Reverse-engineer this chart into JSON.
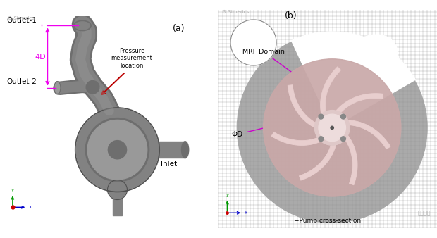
{
  "panel_a_label": "(a)",
  "panel_b_label": "(b)",
  "simerics_text": "Simerics",
  "outlet1_label": "Outlet-1",
  "outlet2_label": "Outlet-2",
  "inlet_label": "Inlet",
  "label_4D": "4D",
  "pressure_label": "Pressure\nmeasurement\nlocation",
  "mrf_domain_label": "MRF Domain",
  "phi_d_label": "ΦD",
  "pump_cross_section_label": "Pump cross-section",
  "taigong_label": "台工俺真",
  "bg_color": "#ffffff",
  "pump_dark": "#6e6e6e",
  "pump_mid": "#828282",
  "pump_light": "#999999",
  "pump_rim": "#505050",
  "magenta_color": "#ee00ee",
  "red_arrow_color": "#bb0000",
  "mrf_fill": "#c9a8a8",
  "blade_fill": "#e8cece",
  "blade_edge": "#d4b0b0",
  "hub_fill": "#dfc8c8",
  "hub_inner_fill": "#eddcdc",
  "grid_color": "#999999",
  "outer_mesh_fill": "#aaaaaa",
  "annot_color": "#cc00cc",
  "coord_x_color": "#0000cc",
  "coord_y_color": "#009900",
  "coord_z_color": "#cc0000"
}
